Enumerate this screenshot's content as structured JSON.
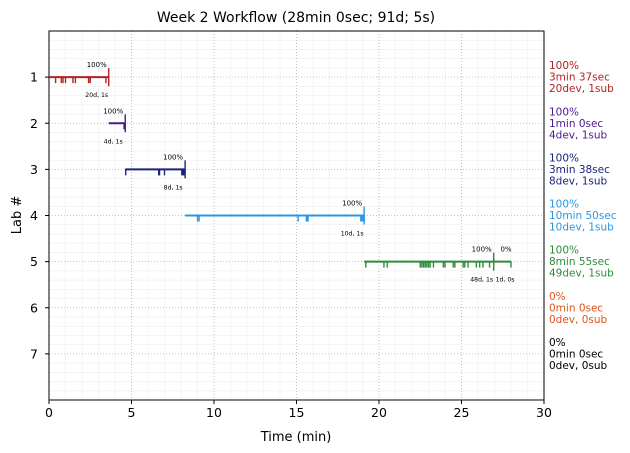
{
  "chart_data": {
    "type": "timeline",
    "title": "Week 2 Workflow (28min 0sec; 91d; 5s)",
    "xlabel": "Time (min)",
    "ylabel": "Lab #",
    "xlim": [
      0,
      30
    ],
    "ylim": [
      8,
      0
    ],
    "xticks": [
      0,
      5,
      10,
      15,
      20,
      25,
      30
    ],
    "yticks": [
      1,
      2,
      3,
      4,
      5,
      6,
      7
    ],
    "grid": true,
    "labs": [
      {
        "lab": 1,
        "color": "#b22222",
        "start": 0.0,
        "end": 3.62,
        "pct_above": "100%",
        "counts_below": "20d, 1s",
        "side_pct": "100%",
        "side_time": "3min 37sec",
        "side_counts": "20dev, 1sub",
        "dev_marks": [
          0.4,
          0.75,
          0.85,
          1.0,
          1.45,
          1.6,
          2.4,
          2.5,
          3.45
        ],
        "sub_marks": [
          3.62
        ]
      },
      {
        "lab": 2,
        "color": "#4b1a8f",
        "start": 3.62,
        "end": 4.62,
        "pct_above": "100%",
        "counts_below": "4d, 1s",
        "side_pct": "100%",
        "side_time": "1min 0sec",
        "side_counts": "4dev, 1sub",
        "dev_marks": [
          4.55,
          4.58,
          4.6,
          4.61
        ],
        "sub_marks": [
          4.62
        ]
      },
      {
        "lab": 3,
        "color": "#1b237a",
        "start": 4.62,
        "end": 8.25,
        "pct_above": "100%",
        "counts_below": "8d, 1s",
        "side_pct": "100%",
        "side_time": "3min 38sec",
        "side_counts": "8dev, 1sub",
        "dev_marks": [
          4.65,
          6.65,
          6.7,
          7.0,
          8.05,
          8.1,
          8.15,
          8.2
        ],
        "sub_marks": [
          8.25
        ]
      },
      {
        "lab": 4,
        "color": "#2b96e3",
        "start": 8.25,
        "end": 19.1,
        "pct_above": "100%",
        "counts_below": "10d, 1s",
        "side_pct": "100%",
        "side_time": "10min 50sec",
        "side_counts": "10dev, 1sub",
        "dev_marks": [
          9.0,
          9.1,
          15.1,
          15.6,
          15.65,
          15.7,
          18.9,
          18.95,
          19.0,
          19.05
        ],
        "sub_marks": [
          19.1
        ]
      },
      {
        "lab": 5,
        "color": "#2e8b3a",
        "start": 19.1,
        "end": 28.0,
        "pct_above": "100%",
        "counts_below": "48d, 1s",
        "pct_above_2": "0%",
        "counts_below_2": "1d, 0s",
        "side_pct": "100%",
        "side_time": "8min 55sec",
        "side_counts": "49dev, 1sub",
        "dev_marks": [
          19.2,
          20.3,
          20.5,
          22.5,
          22.6,
          22.7,
          22.8,
          22.9,
          23.0,
          23.1,
          23.3,
          23.9,
          24.0,
          24.5,
          24.6,
          25.1,
          25.2,
          25.4,
          25.9,
          26.1,
          26.3,
          26.7,
          28.0
        ],
        "sub_marks": [
          26.95
        ]
      },
      {
        "lab": 6,
        "color": "#e0531d",
        "side_pct": "0%",
        "side_time": "0min 0sec",
        "side_counts": "0dev, 0sub"
      },
      {
        "lab": 7,
        "color": "#000000",
        "side_pct": "0%",
        "side_time": "0min 0sec",
        "side_counts": "0dev, 0sub"
      }
    ]
  }
}
